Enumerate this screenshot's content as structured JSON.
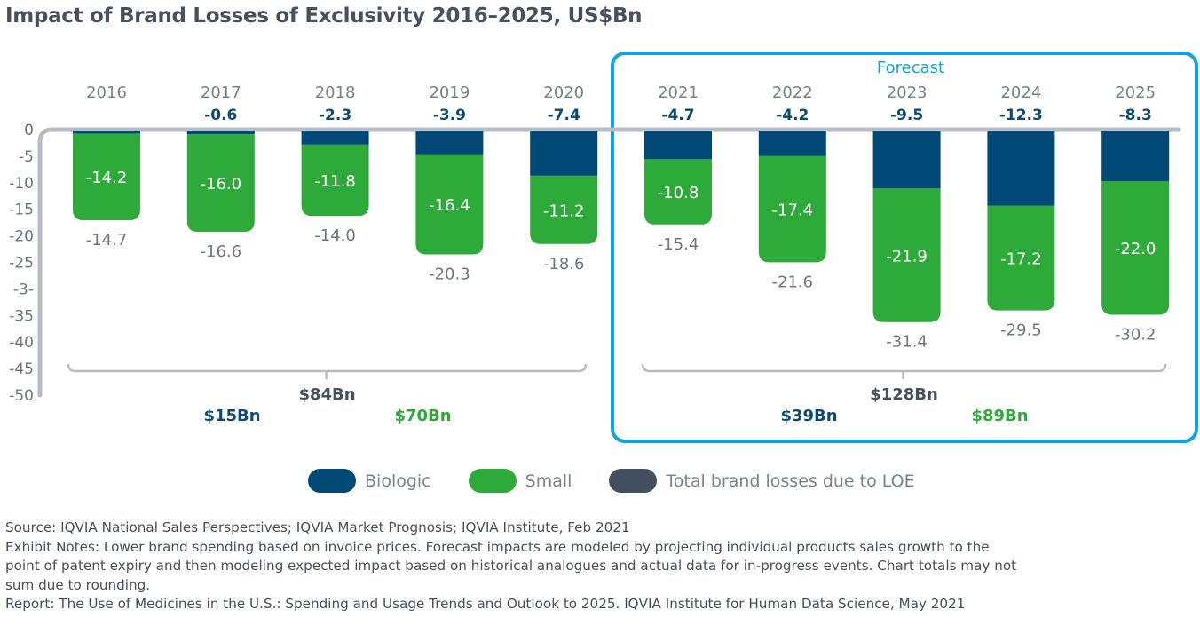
{
  "title": "Impact of Brand Losses of Exclusivity 2016–2025, US$Bn",
  "colors": {
    "biologic": "#004977",
    "small": "#2eaa3a",
    "total": "#44505f",
    "forecast_box": "#12a3de",
    "axis": "#b8bdc4",
    "tick_label": "#6f7682",
    "year_label": "#7a818c",
    "biologic_label": "#0c4a75"
  },
  "chart_data": {
    "type": "bar",
    "stacked": true,
    "title": "Impact of Brand Losses of Exclusivity 2016–2025, US$Bn",
    "xlabel": "",
    "ylabel": "",
    "ylim": [
      -50,
      0
    ],
    "y_ticks": [
      "0",
      "-5",
      "-10",
      "-15",
      "-20",
      "-25",
      "-3-",
      "-35",
      "-40",
      "-45",
      "-50"
    ],
    "categories": [
      "2016",
      "2017",
      "2018",
      "2019",
      "2020",
      "2021",
      "2022",
      "2023",
      "2024",
      "2025"
    ],
    "series": [
      {
        "name": "Biologic",
        "values": [
          -0.5,
          -0.6,
          -2.3,
          -3.9,
          -7.4,
          -4.7,
          -4.2,
          -9.5,
          -12.3,
          -8.3
        ],
        "labels": [
          "",
          "-0.6",
          "-2.3",
          "-3.9",
          "-7.4",
          "-4.7",
          "-4.2",
          "-9.5",
          "-12.3",
          "-8.3"
        ]
      },
      {
        "name": "Small",
        "values": [
          -14.2,
          -16.0,
          -11.8,
          -16.4,
          -11.2,
          -10.8,
          -17.4,
          -21.9,
          -17.2,
          -22.0
        ],
        "labels": [
          "-14.2",
          "-16.0",
          "-11.8",
          "-16.4",
          "-11.2",
          "-10.8",
          "-17.4",
          "-21.9",
          "-17.2",
          "-22.0"
        ]
      },
      {
        "name": "Total brand losses due to LOE",
        "values": [
          -14.7,
          -16.6,
          -14.0,
          -20.3,
          -18.6,
          -15.4,
          -21.6,
          -31.4,
          -29.5,
          -30.2
        ],
        "labels": [
          "-14.7",
          "-16.6",
          "-14.0",
          "-20.3",
          "-18.6",
          "-15.4",
          "-21.6",
          "-31.4",
          "-29.5",
          "-30.2"
        ]
      }
    ],
    "forecast_label": "Forecast",
    "forecast_start": "2021",
    "period_totals": [
      {
        "range": [
          "2016",
          "2020"
        ],
        "total": "$84Bn",
        "biologic": "$15Bn",
        "small": "$70Bn"
      },
      {
        "range": [
          "2021",
          "2025"
        ],
        "total": "$128Bn",
        "biologic": "$39Bn",
        "small": "$89Bn"
      }
    ],
    "legend_position": "bottom",
    "grid": false
  },
  "legend": [
    {
      "key": "biologic",
      "label": "Biologic"
    },
    {
      "key": "small",
      "label": "Small"
    },
    {
      "key": "total",
      "label": "Total brand losses due to LOE"
    }
  ],
  "notes": {
    "source": "Source: IQVIA National Sales Perspectives; IQVIA Market Prognosis; IQVIA Institute, Feb 2021",
    "exhibit_line1": "Exhibit Notes: Lower brand spending based on invoice prices. Forecast impacts are modeled by projecting individual products sales growth to the",
    "exhibit_line2": "point of patent expiry and then modeling expected impact based on historical analogues and actual data for in-progress events. Chart totals may not",
    "exhibit_line3": "sum due to rounding.",
    "report": "Report: The Use of Medicines in the U.S.: Spending and Usage Trends and Outlook to 2025. IQVIA Institute for Human Data Science, May 2021"
  }
}
